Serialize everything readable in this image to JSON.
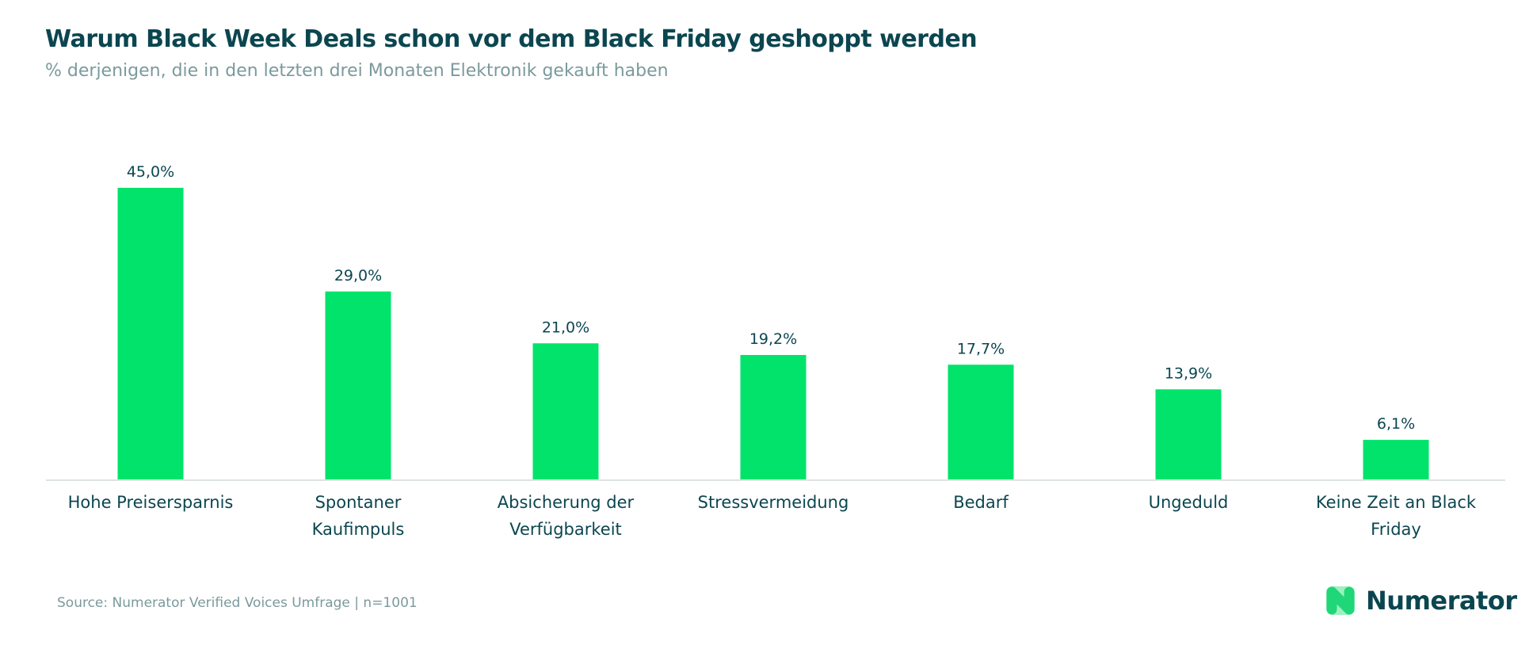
{
  "title": "Warum Black Week Deals schon vor dem Black Friday geshoppt werden",
  "subtitle": "% derjenigen, die in den letzten drei Monaten Elektronik gekauft haben",
  "source": "Source: Numerator Verified Voices Umfrage | n=1001",
  "logo": {
    "text": "Numerator"
  },
  "colors": {
    "bar": "#02e36b",
    "title": "#0b4650",
    "subtitle": "#7b9a9c",
    "axis": "#dde3e3",
    "label": "#0b4650"
  },
  "chart_data": {
    "type": "bar",
    "title": "Warum Black Week Deals schon vor dem Black Friday geshoppt werden",
    "subtitle": "% derjenigen, die in den letzten drei Monaten Elektronik gekauft haben",
    "categories": [
      [
        "Hohe Preisersparnis"
      ],
      [
        "Spontaner",
        "Kaufimpuls"
      ],
      [
        "Absicherung der",
        "Verfügbarkeit"
      ],
      [
        "Stressvermeidung"
      ],
      [
        "Bedarf"
      ],
      [
        "Ungeduld"
      ],
      [
        "Keine Zeit an Black",
        "Friday"
      ]
    ],
    "values": [
      45.0,
      29.0,
      21.0,
      19.2,
      17.7,
      13.9,
      6.1
    ],
    "data_labels": [
      "45,0%",
      "29,0%",
      "21,0%",
      "19,2%",
      "17,7%",
      "13,9%",
      "6,1%"
    ],
    "ylim": [
      0,
      45
    ],
    "grid": false,
    "xlabel": "",
    "ylabel": ""
  }
}
